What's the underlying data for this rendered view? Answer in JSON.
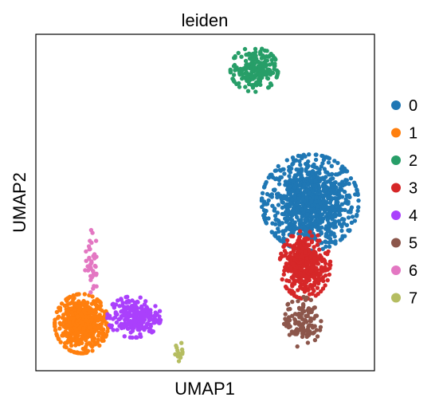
{
  "chart_data": {
    "type": "scatter",
    "title": "leiden",
    "xlabel": "UMAP1",
    "ylabel": "UMAP2",
    "xlim": [
      0,
      100
    ],
    "ylim": [
      0,
      100
    ],
    "grid": false,
    "ticks": false,
    "legend_position": "right",
    "series": [
      {
        "name": "0",
        "color": "#1f77b4",
        "clusters": [
          {
            "cx": 81,
            "cy": 50,
            "sx": 6.5,
            "sy": 6.5,
            "n": 900
          }
        ]
      },
      {
        "name": "1",
        "color": "#ff7f0e",
        "clusters": [
          {
            "cx": 13.5,
            "cy": 14,
            "sx": 3.6,
            "sy": 4.0,
            "n": 520
          }
        ]
      },
      {
        "name": "2",
        "color": "#279e68",
        "clusters": [
          {
            "cx": 64.5,
            "cy": 89.5,
            "sx": 3.2,
            "sy": 3.0,
            "n": 220
          }
        ]
      },
      {
        "name": "3",
        "color": "#d62728",
        "clusters": [
          {
            "cx": 79.5,
            "cy": 31.5,
            "sx": 3.4,
            "sy": 4.6,
            "n": 380
          }
        ]
      },
      {
        "name": "4",
        "color": "#aa40fc",
        "clusters": [
          {
            "cx": 29,
            "cy": 16,
            "sx": 3.6,
            "sy": 2.8,
            "n": 240
          }
        ]
      },
      {
        "name": "5",
        "color": "#8c564b",
        "clusters": [
          {
            "cx": 78.5,
            "cy": 14.5,
            "sx": 2.6,
            "sy": 3.4,
            "n": 120
          }
        ]
      },
      {
        "name": "6",
        "color": "#e377c2",
        "clusters": [
          {
            "cx": 16.5,
            "cy": 32,
            "sx": 0.9,
            "sy": 4.5,
            "n": 40
          }
        ]
      },
      {
        "name": "7",
        "color": "#b5bd61",
        "clusters": [
          {
            "cx": 42.5,
            "cy": 5.5,
            "sx": 0.8,
            "sy": 1.3,
            "n": 14
          }
        ]
      }
    ]
  }
}
